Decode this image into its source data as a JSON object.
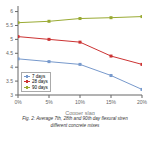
{
  "chart_data": {
    "type": "line",
    "x": [
      0,
      5,
      10,
      15,
      20
    ],
    "xlabel": "Copper slag",
    "series": [
      {
        "name": "7 days",
        "color": "#7799CC",
        "marker": "square",
        "values": [
          4.3,
          4.2,
          4.1,
          3.7,
          3.2
        ]
      },
      {
        "name": "28 days",
        "color": "#CC3333",
        "marker": "square",
        "values": [
          5.1,
          5.0,
          4.9,
          4.4,
          4.1
        ]
      },
      {
        "name": "90 days",
        "color": "#99AA33",
        "marker": "square",
        "values": [
          5.6,
          5.65,
          5.75,
          5.78,
          5.82
        ]
      }
    ],
    "xlim": [
      0,
      20
    ],
    "xticks": [
      {
        "value": 0,
        "label": "0%"
      },
      {
        "value": 5,
        "label": "5%"
      },
      {
        "value": 10,
        "label": "10%"
      },
      {
        "value": 15,
        "label": "15%"
      },
      {
        "value": 20,
        "label": "20%"
      }
    ],
    "ylim": [
      3.0,
      6.2
    ],
    "yticks": [
      3,
      3.5,
      4,
      4.5,
      5,
      5.5,
      6
    ],
    "grid": false,
    "legend": "lower left",
    "annotations": [
      "Fig. 2: Average 7th, 28th and 90th day flexural stren",
      "different concrete mixes"
    ]
  }
}
